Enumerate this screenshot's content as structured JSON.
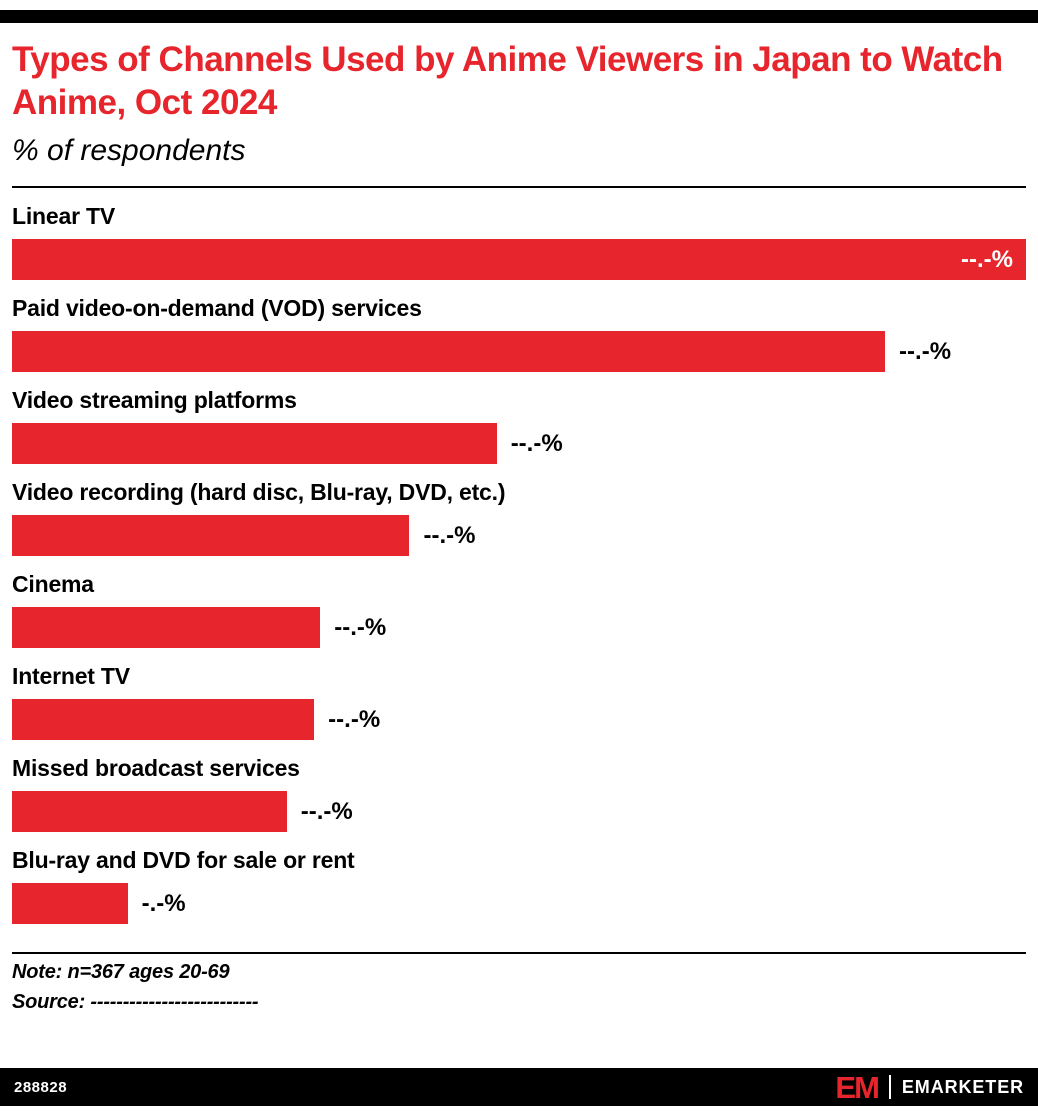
{
  "header": {
    "title": "Types of Channels Used by Anime Viewers in Japan to Watch Anime, Oct 2024",
    "subtitle": "% of respondents"
  },
  "chart_data": {
    "type": "bar",
    "orientation": "horizontal",
    "title": "Types of Channels Used by Anime Viewers in Japan to Watch Anime, Oct 2024",
    "subtitle": "% of respondents",
    "xlim": [
      0,
      100
    ],
    "bar_color": "#e6252c",
    "categories": [
      "Linear TV",
      "Paid video-on-demand (VOD) services",
      "Video streaming platforms",
      "Video recording (hard disc, Blu-ray, DVD, etc.)",
      "Cinema",
      "Internet TV",
      "Missed broadcast services",
      "Blu-ray and DVD for sale or rent"
    ],
    "value_labels": [
      "--.-%",
      "--.-%",
      "--.-%",
      "--.-%",
      "--.-%",
      "--.-%",
      "--.-%",
      "-.-%"
    ],
    "rows": [
      {
        "category": "Linear TV",
        "value_label": "--.-%",
        "width_pct": 100,
        "label_inside": true
      },
      {
        "category": "Paid video-on-demand (VOD) services",
        "value_label": "--.-%",
        "width_pct": 86.1,
        "label_inside": false
      },
      {
        "category": "Video streaming platforms",
        "value_label": "--.-%",
        "width_pct": 47.8,
        "label_inside": false
      },
      {
        "category": "Video recording (hard disc, Blu-ray, DVD, etc.)",
        "value_label": "--.-%",
        "width_pct": 39.2,
        "label_inside": false
      },
      {
        "category": "Cinema",
        "value_label": "--.-%",
        "width_pct": 30.4,
        "label_inside": false
      },
      {
        "category": "Internet TV",
        "value_label": "--.-%",
        "width_pct": 29.8,
        "label_inside": false
      },
      {
        "category": "Missed broadcast services",
        "value_label": "--.-%",
        "width_pct": 27.1,
        "label_inside": false
      },
      {
        "category": "Blu-ray and DVD for sale or rent",
        "value_label": "-.-%",
        "width_pct": 11.4,
        "label_inside": false
      }
    ]
  },
  "footer": {
    "note": "Note: n=367 ages 20-69",
    "source": "Source: --------------------------",
    "chart_id": "288828",
    "logo_mark": "EM",
    "brand": "EMARKETER"
  }
}
